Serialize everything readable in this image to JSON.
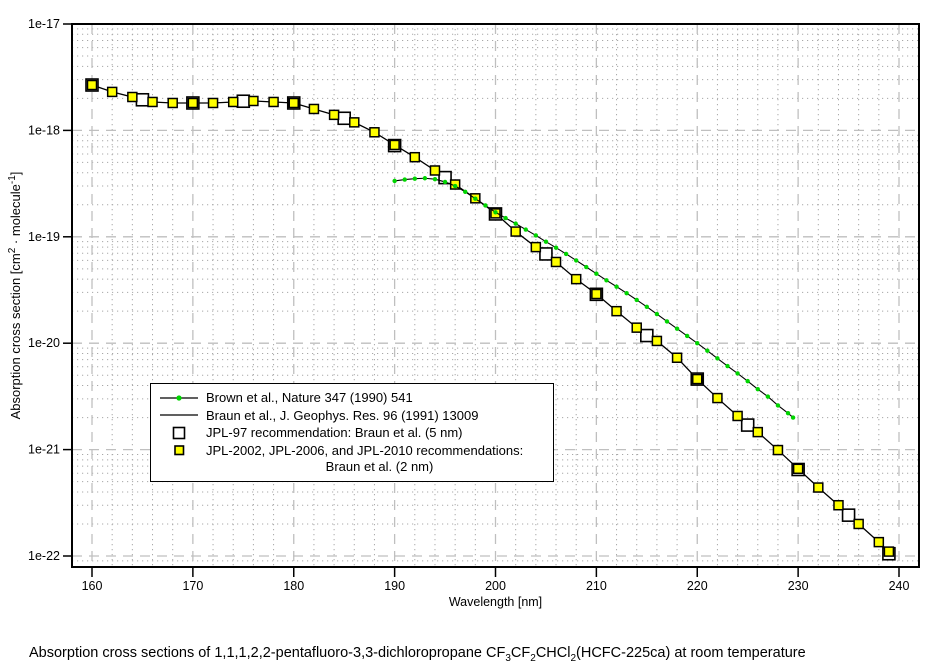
{
  "figure": {
    "xlabel": "Wavelength [nm]",
    "ylabel_parts": [
      {
        "t": "Absorption cross section [cm"
      },
      {
        "t": "2",
        "sup": true
      },
      {
        "t": " · molecule"
      },
      {
        "t": "-1",
        "sup": true
      },
      {
        "t": "]"
      }
    ],
    "caption_parts": [
      {
        "t": "Absorption cross sections of 1,1,1,2,2-pentafluoro-3,3-dichloropropane CF"
      },
      {
        "t": "3",
        "sub": true
      },
      {
        "t": "CF"
      },
      {
        "t": "2",
        "sub": true
      },
      {
        "t": "CHCl"
      },
      {
        "t": "2",
        "sub": true
      },
      {
        "t": "(HCFC-225ca) at room temperature"
      }
    ]
  },
  "legend": {
    "items": [
      {
        "marker": "black-line-with-green-dot",
        "label": "Brown et al., Nature 347 (1990) 541"
      },
      {
        "marker": "black-line",
        "label": "Braun et al., J. Geophys. Res. 96 (1991) 13009"
      },
      {
        "marker": "open-square",
        "label": "JPL-97 recommendation: Braun et al. (5 nm)"
      },
      {
        "marker": "yellow-square",
        "label": "JPL-2002, JPL-2006, and JPL-2010 recommendations:",
        "label2": "Braun et al. (2 nm)"
      }
    ]
  },
  "chart_data": {
    "type": "line",
    "title": "",
    "xlabel": "Wavelength [nm]",
    "ylabel": "Absorption cross section [cm2 · molecule-1]",
    "y_scale": "log",
    "grid": true,
    "legend_position": "inside-center-left",
    "x_axis": {
      "ticks": [
        160,
        170,
        180,
        190,
        200,
        210,
        220,
        230,
        240
      ],
      "tick_labels": [
        "160",
        "170",
        "180",
        "190",
        "200",
        "210",
        "220",
        "230",
        "240"
      ],
      "minor_step_nm": 2
    },
    "y_axis": {
      "tick_exponents": [
        -17,
        -18,
        -19,
        -20,
        -21,
        -22
      ],
      "tick_labels": [
        "1e-17",
        "1e-18",
        "1e-19",
        "1e-20",
        "1e-21",
        "1e-22"
      ],
      "ylim": [
        1e-22,
        1e-17
      ]
    },
    "series": [
      {
        "name": "Brown et al., Nature 347 (1990) 541",
        "style": "black line with small green dot markers",
        "x": [
          190,
          191,
          192,
          193,
          194,
          195,
          196,
          197,
          198,
          199,
          200,
          201,
          202,
          203,
          204,
          205,
          206,
          207,
          208,
          209,
          210,
          211,
          212,
          213,
          214,
          215,
          216,
          217,
          218,
          219,
          220,
          221,
          222,
          223,
          224,
          225,
          226,
          227,
          228,
          229,
          229.5
        ],
        "y": [
          3.35e-19,
          3.45e-19,
          3.52e-19,
          3.55e-19,
          3.48e-19,
          3.28e-19,
          3e-19,
          2.65e-19,
          2.28e-19,
          1.97e-19,
          1.7e-19,
          1.5e-19,
          1.33e-19,
          1.17e-19,
          1.03e-19,
          9e-20,
          7.9e-20,
          6.9e-20,
          6e-20,
          5.2e-20,
          4.5e-20,
          3.9e-20,
          3.4e-20,
          2.95e-20,
          2.55e-20,
          2.2e-20,
          1.88e-20,
          1.6e-20,
          1.37e-20,
          1.17e-20,
          1e-20,
          8.5e-21,
          7.2e-21,
          6.1e-21,
          5.2e-21,
          4.4e-21,
          3.7e-21,
          3.15e-21,
          2.6e-21,
          2.2e-21,
          2e-21
        ]
      },
      {
        "name": "Braun et al., J. Geophys. Res. 96 (1991) 13009",
        "style": "black line",
        "x": [
          160,
          162,
          164,
          166,
          168,
          170,
          172,
          174,
          176,
          178,
          180,
          182,
          184,
          186,
          188,
          190,
          192,
          194,
          196,
          198,
          200,
          202,
          204,
          206,
          208,
          210,
          212,
          214,
          216,
          218,
          220,
          222,
          224,
          226,
          228,
          230,
          232,
          234,
          236,
          238,
          239
        ],
        "y": [
          2.67e-18,
          2.3e-18,
          2.06e-18,
          1.85e-18,
          1.81e-18,
          1.81e-18,
          1.81e-18,
          1.85e-18,
          1.89e-18,
          1.85e-18,
          1.81e-18,
          1.59e-18,
          1.4e-18,
          1.19e-18,
          9.6e-19,
          7.3e-19,
          5.6e-19,
          4.2e-19,
          3.1e-19,
          2.3e-19,
          1.66e-19,
          1.12e-19,
          8e-20,
          5.8e-20,
          4e-20,
          2.9e-20,
          2e-20,
          1.4e-20,
          1.05e-20,
          7.3e-21,
          4.6e-21,
          3.05e-21,
          2.07e-21,
          1.46e-21,
          9.9e-22,
          6.6e-22,
          4.4e-22,
          3e-22,
          2e-22,
          1.35e-22,
          1.1e-22
        ]
      },
      {
        "name": "JPL-97 recommendation: Braun et al. (5 nm)",
        "style": "open square markers",
        "x": [
          160,
          165,
          170,
          175,
          180,
          185,
          190,
          195,
          200,
          205,
          210,
          215,
          220,
          225,
          230,
          235,
          239
        ],
        "y": [
          2.67e-18,
          1.94e-18,
          1.81e-18,
          1.88e-18,
          1.81e-18,
          1.3e-18,
          7.2e-19,
          3.6e-19,
          1.64e-19,
          6.9e-20,
          2.88e-20,
          1.18e-20,
          4.6e-21,
          1.7e-21,
          6.5e-22,
          2.42e-22,
          1.05e-22
        ]
      },
      {
        "name": "JPL-2002, JPL-2006, and JPL-2010 recommendations: Braun et al. (2 nm)",
        "style": "yellow square markers",
        "x": [
          160,
          162,
          164,
          166,
          168,
          170,
          172,
          174,
          176,
          178,
          180,
          182,
          184,
          186,
          188,
          190,
          192,
          194,
          196,
          198,
          200,
          202,
          204,
          206,
          208,
          210,
          212,
          214,
          216,
          218,
          220,
          222,
          224,
          226,
          228,
          230,
          232,
          234,
          236,
          238,
          239
        ],
        "y": [
          2.67e-18,
          2.3e-18,
          2.06e-18,
          1.85e-18,
          1.81e-18,
          1.81e-18,
          1.81e-18,
          1.85e-18,
          1.89e-18,
          1.85e-18,
          1.81e-18,
          1.59e-18,
          1.4e-18,
          1.19e-18,
          9.6e-19,
          7.3e-19,
          5.6e-19,
          4.2e-19,
          3.1e-19,
          2.3e-19,
          1.66e-19,
          1.12e-19,
          8e-20,
          5.8e-20,
          4e-20,
          2.9e-20,
          2e-20,
          1.4e-20,
          1.05e-20,
          7.3e-21,
          4.6e-21,
          3.05e-21,
          2.07e-21,
          1.46e-21,
          9.9e-22,
          6.6e-22,
          4.4e-22,
          3e-22,
          2e-22,
          1.35e-22,
          1.1e-22
        ]
      }
    ],
    "colors": {
      "line_black": "#000000",
      "marker_green": "#00d500",
      "marker_yellow": "#ffff00",
      "marker_open_fill": "#ffffff",
      "grid_major": "#bfbfbf",
      "grid_minor": "#a8a8a8"
    }
  }
}
